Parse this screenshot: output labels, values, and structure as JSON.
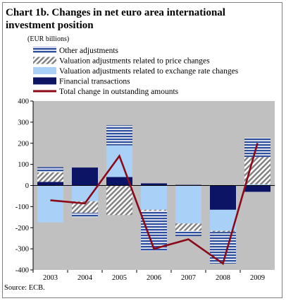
{
  "title": "Chart 1b. Changes in net euro area international investment position",
  "unit_label": "(EUR billions)",
  "source": "Source: ECB.",
  "colors": {
    "other_adjustments": "#2f4f9f",
    "price_changes": "#7f7f7f",
    "exchange_rate": "#a9d1f7",
    "financial_transactions": "#0c1466",
    "total_change": "#8b0a1a",
    "plot_bg": "#c0c0c0"
  },
  "chart_data": {
    "type": "bar",
    "stacked": true,
    "title": "Chart 1b. Changes in net euro area international investment position",
    "ylabel": "(EUR billions)",
    "categories": [
      "2003",
      "2004",
      "2005",
      "2006",
      "2007",
      "2008",
      "2009"
    ],
    "ylim": [
      -400,
      400
    ],
    "yticks": [
      400,
      300,
      200,
      100,
      0,
      -100,
      -200,
      -300,
      -400
    ],
    "grid": false,
    "legend_position": "top",
    "series": [
      {
        "name": "Other adjustments",
        "kind": "bar",
        "pattern": "hlines",
        "values": [
          25,
          -20,
          95,
          -190,
          -25,
          -150,
          90
        ]
      },
      {
        "name": "Valuation adjustments related to price changes",
        "kind": "bar",
        "pattern": "diag",
        "values": [
          45,
          -55,
          -140,
          -5,
          -35,
          -5,
          130
        ]
      },
      {
        "name": "Valuation adjustments related to exchange rate changes",
        "kind": "bar",
        "pattern": "solid-light",
        "values": [
          -175,
          -75,
          150,
          -115,
          -180,
          -100,
          5
        ]
      },
      {
        "name": "Financial transactions",
        "kind": "bar",
        "pattern": "solid-dark",
        "values": [
          17,
          85,
          40,
          10,
          3,
          -115,
          -30
        ]
      },
      {
        "name": "Total change in outstanding amounts",
        "kind": "line",
        "values": [
          -70,
          -85,
          140,
          -300,
          -255,
          -370,
          200
        ]
      }
    ]
  }
}
